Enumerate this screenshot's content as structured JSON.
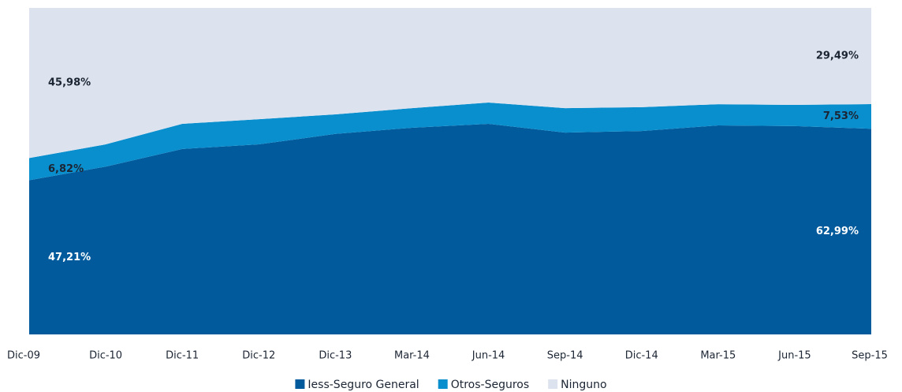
{
  "chart_data": {
    "type": "stacked-area",
    "categories": [
      "Dic-09",
      "Dic-10",
      "Dic-11",
      "Dic-12",
      "Dic-13",
      "Mar-14",
      "Jun-14",
      "Sep-14",
      "Dic-14",
      "Mar-15",
      "Jun-15",
      "Sep-15"
    ],
    "ylim": [
      0,
      100
    ],
    "legend": "bottom",
    "series": [
      {
        "name": "Iess-Seguro General",
        "color": "#005a9c",
        "label_color": "#ffffff",
        "values": [
          47.21,
          51.4,
          56.8,
          58.2,
          61.4,
          63.3,
          64.5,
          61.8,
          62.3,
          64.0,
          63.8,
          62.99
        ],
        "value_labels": [
          "47,21%",
          null,
          null,
          null,
          null,
          null,
          null,
          null,
          null,
          null,
          null,
          "62,99%"
        ]
      },
      {
        "name": "Otros-Seguros",
        "color": "#0a8fce",
        "label_color": "#1c2533",
        "values": [
          6.82,
          6.8,
          7.7,
          7.7,
          6.0,
          6.0,
          6.5,
          7.5,
          7.3,
          6.5,
          6.5,
          7.53
        ],
        "value_labels": [
          "6,82%",
          null,
          null,
          null,
          null,
          null,
          null,
          null,
          null,
          null,
          null,
          "7,53%"
        ]
      },
      {
        "name": "Ninguno",
        "color": "#dde3ee",
        "label_color": "#1c2533",
        "values": [
          45.98,
          41.8,
          35.5,
          34.1,
          32.6,
          30.7,
          29.0,
          30.7,
          30.4,
          29.5,
          29.7,
          29.49
        ],
        "value_labels": [
          "45,98%",
          null,
          null,
          null,
          null,
          null,
          null,
          null,
          null,
          null,
          null,
          "29,49%"
        ]
      }
    ]
  }
}
